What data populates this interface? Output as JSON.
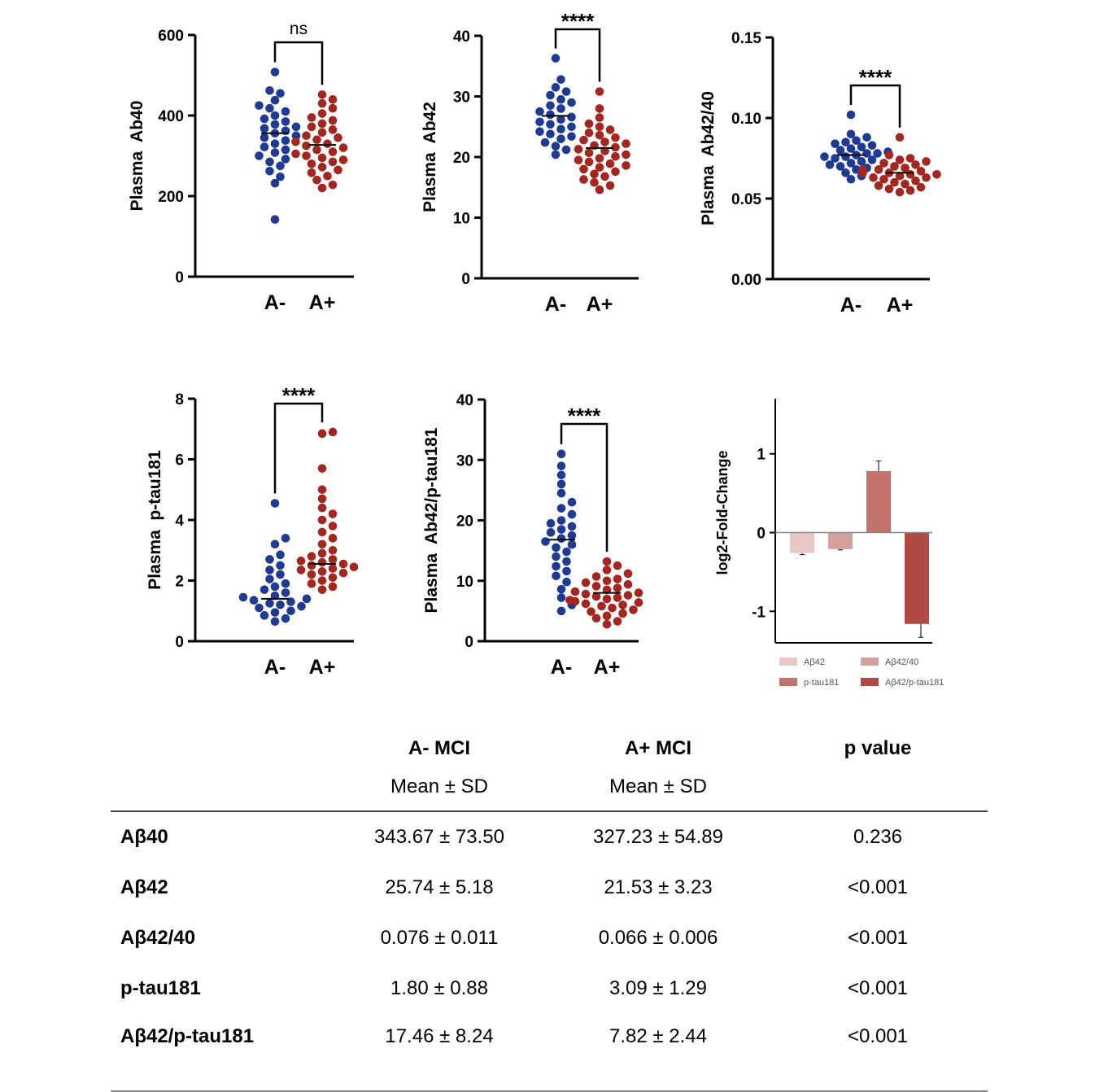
{
  "chart_data": [
    {
      "type": "scatter",
      "ylabel": "Plasma  Ab40",
      "categories": [
        "A-",
        "A+"
      ],
      "ylim": [
        0,
        600
      ],
      "yticks": [
        0,
        200,
        400,
        600
      ],
      "significance": "ns",
      "series": [
        {
          "color": "#1f3a93",
          "mean": 356,
          "values": [
            508,
            462,
            455,
            438,
            425,
            418,
            410,
            400,
            392,
            385,
            378,
            372,
            368,
            362,
            356,
            350,
            345,
            338,
            330,
            322,
            315,
            308,
            300,
            292,
            285,
            275,
            262,
            248,
            232,
            142
          ]
        },
        {
          "color": "#a3271f",
          "mean": 327,
          "values": [
            452,
            440,
            430,
            418,
            405,
            395,
            388,
            380,
            372,
            365,
            358,
            350,
            345,
            340,
            335,
            330,
            325,
            320,
            315,
            310,
            305,
            300,
            295,
            290,
            285,
            280,
            272,
            265,
            258,
            250,
            240,
            228,
            220
          ]
        }
      ]
    },
    {
      "type": "scatter",
      "ylabel": "Plasma  Ab42",
      "categories": [
        "A-",
        "A+"
      ],
      "ylim": [
        0,
        40
      ],
      "yticks": [
        0,
        10,
        20,
        30,
        40
      ],
      "significance": "****",
      "series": [
        {
          "color": "#1f3a93",
          "mean": 26.8,
          "values": [
            36.3,
            32.8,
            31.5,
            30.8,
            30.2,
            29.5,
            29.0,
            28.5,
            28.0,
            27.5,
            27.0,
            26.6,
            26.2,
            25.8,
            25.4,
            25.0,
            24.6,
            24.2,
            23.8,
            23.4,
            23.0,
            22.4,
            21.8,
            21.2,
            20.4
          ]
        },
        {
          "color": "#a3271f",
          "mean": 21.5,
          "values": [
            30.8,
            28.0,
            26.5,
            25.5,
            25.0,
            24.5,
            24.0,
            23.6,
            23.2,
            22.8,
            22.5,
            22.2,
            21.9,
            21.6,
            21.3,
            21.0,
            20.7,
            20.4,
            20.1,
            19.8,
            19.5,
            19.2,
            18.9,
            18.6,
            18.3,
            18.0,
            17.6,
            17.2,
            16.8,
            16.3,
            15.8,
            15.3,
            14.6
          ]
        }
      ]
    },
    {
      "type": "scatter",
      "ylabel": "Plasma  Ab42/40",
      "categories": [
        "A-",
        "A+"
      ],
      "ylim": [
        0,
        0.15
      ],
      "yticks": [
        0,
        0.05,
        0.1,
        0.15
      ],
      "ytick_labels": [
        "0.00",
        "0.05",
        "0.10",
        "0.15"
      ],
      "significance": "****",
      "series": [
        {
          "color": "#1f3a93",
          "mean": 0.077,
          "values": [
            0.102,
            0.09,
            0.088,
            0.086,
            0.085,
            0.084,
            0.083,
            0.082,
            0.081,
            0.08,
            0.079,
            0.078,
            0.078,
            0.077,
            0.076,
            0.076,
            0.075,
            0.074,
            0.073,
            0.072,
            0.071,
            0.07,
            0.069,
            0.068,
            0.066,
            0.064,
            0.062
          ]
        },
        {
          "color": "#a3271f",
          "mean": 0.066,
          "values": [
            0.088,
            0.077,
            0.075,
            0.074,
            0.073,
            0.072,
            0.071,
            0.07,
            0.069,
            0.068,
            0.068,
            0.067,
            0.066,
            0.066,
            0.065,
            0.065,
            0.064,
            0.063,
            0.063,
            0.062,
            0.061,
            0.06,
            0.059,
            0.058,
            0.057,
            0.056,
            0.055,
            0.054
          ]
        }
      ]
    },
    {
      "type": "scatter",
      "ylabel": "Plasma  p-tau181",
      "categories": [
        "A-",
        "A+"
      ],
      "ylim": [
        0,
        8
      ],
      "yticks": [
        0,
        2,
        4,
        6,
        8
      ],
      "significance": "****",
      "series": [
        {
          "color": "#1f3a93",
          "mean": 1.4,
          "values": [
            4.55,
            3.4,
            3.2,
            2.85,
            2.7,
            2.5,
            2.35,
            2.2,
            2.05,
            1.9,
            1.8,
            1.7,
            1.6,
            1.5,
            1.45,
            1.4,
            1.35,
            1.3,
            1.25,
            1.2,
            1.15,
            1.1,
            1.0,
            0.95,
            0.85,
            0.75,
            0.65
          ]
        },
        {
          "color": "#a3271f",
          "mean": 2.55,
          "values": [
            6.9,
            6.85,
            5.7,
            5.0,
            4.7,
            4.4,
            4.2,
            4.0,
            3.8,
            3.6,
            3.4,
            3.2,
            3.0,
            2.9,
            2.8,
            2.7,
            2.65,
            2.6,
            2.55,
            2.5,
            2.45,
            2.4,
            2.35,
            2.3,
            2.25,
            2.2,
            2.1,
            2.0,
            1.9,
            1.8,
            1.7
          ]
        }
      ]
    },
    {
      "type": "scatter",
      "ylabel": "Plasma  Ab42/p-tau181",
      "categories": [
        "A-",
        "A+"
      ],
      "ylim": [
        0,
        40
      ],
      "yticks": [
        0,
        10,
        20,
        30,
        40
      ],
      "significance": "****",
      "series": [
        {
          "color": "#1f3a93",
          "mean": 16.8,
          "values": [
            31.0,
            29.0,
            27.5,
            26.0,
            24.5,
            23.0,
            22.0,
            21.0,
            20.0,
            19.5,
            19.0,
            18.5,
            18.0,
            17.5,
            17.0,
            16.5,
            16.0,
            15.5,
            14.8,
            14.0,
            13.2,
            12.4,
            11.6,
            10.8,
            9.8,
            8.6,
            7.2,
            6.0,
            5.0
          ]
        },
        {
          "color": "#a3271f",
          "mean": 8.0,
          "values": [
            13.2,
            12.5,
            11.8,
            11.2,
            10.7,
            10.3,
            10.0,
            9.7,
            9.4,
            9.1,
            8.8,
            8.5,
            8.2,
            8.0,
            7.8,
            7.6,
            7.4,
            7.2,
            7.0,
            6.8,
            6.6,
            6.4,
            6.2,
            6.0,
            5.8,
            5.5,
            5.2,
            4.9,
            4.6,
            4.2,
            3.8,
            3.3,
            2.8
          ]
        }
      ]
    },
    {
      "type": "bar",
      "ylabel": "log2-Fold-Change",
      "ylim": [
        -1.4,
        1.7
      ],
      "yticks": [
        -1,
        0,
        1
      ],
      "categories": [
        "Aβ42",
        "Aβ42/40",
        "p-tau181",
        "Aβ42/p-tau181"
      ],
      "values": [
        -0.26,
        -0.21,
        0.78,
        -1.16
      ],
      "errors": [
        0.02,
        0.01,
        0.13,
        0.17
      ],
      "colors": [
        "#e7c6c4",
        "#d6a09c",
        "#c4726c",
        "#b04a44"
      ],
      "legend": [
        "Aβ42",
        "Aβ42/40",
        "p-tau181",
        "Aβ42/p-tau181"
      ]
    }
  ],
  "table": {
    "groups": [
      "A- MCI",
      "A+ MCI",
      "p value"
    ],
    "subheaders": [
      "Mean ± SD",
      "Mean ± SD",
      ""
    ],
    "rows": [
      {
        "label": "Aβ40",
        "a_neg": "343.67 ± 73.50",
        "a_pos": "327.23 ± 54.89",
        "p": "0.236"
      },
      {
        "label": "Aβ42",
        "a_neg": "25.74 ± 5.18",
        "a_pos": "21.53 ± 3.23",
        "p": "<0.001"
      },
      {
        "label": "Aβ42/40",
        "a_neg": "0.076 ± 0.011",
        "a_pos": "0.066 ± 0.006",
        "p": "<0.001"
      },
      {
        "label": "p-tau181",
        "a_neg": "1.80 ± 0.88",
        "a_pos": "3.09 ± 1.29",
        "p": "<0.001"
      },
      {
        "label": "Aβ42/p-tau181",
        "a_neg": "17.46 ± 8.24",
        "a_pos": "7.82 ± 2.44",
        "p": "<0.001"
      }
    ]
  }
}
